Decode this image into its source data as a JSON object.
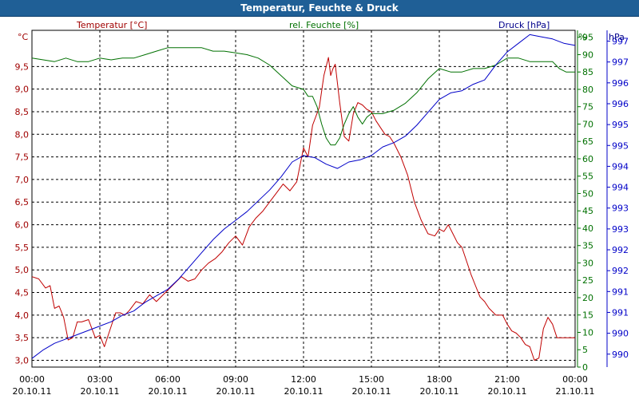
{
  "chart_data": {
    "type": "line",
    "title": "Temperatur, Feuchte & Druck",
    "series_labels": {
      "temperature": "Temperatur [°C]",
      "humidity": "rel. Feuchte [%]",
      "pressure": "Druck [hPa]"
    },
    "axis_units": {
      "left": "°C",
      "right1": "%",
      "right2": "hPa"
    },
    "y_left": {
      "range": [
        2.85,
        10.3
      ],
      "ticks": [
        "3,0",
        "3,5",
        "4,0",
        "4,5",
        "5,0",
        "5,5",
        "6,0",
        "6,5",
        "7,0",
        "7,5",
        "8,0",
        "8,5",
        "9,0",
        "9,5"
      ]
    },
    "y_right1": {
      "range": [
        0,
        97
      ],
      "ticks": [
        "0",
        "5",
        "10",
        "15",
        "20",
        "25",
        "30",
        "35",
        "40",
        "45",
        "50",
        "55",
        "60",
        "65",
        "70",
        "75",
        "80",
        "85",
        "90",
        "95"
      ]
    },
    "y_right2": {
      "range": [
        989.7,
        997.5
      ],
      "ticks": [
        "990",
        "990",
        "991",
        "991",
        "992",
        "992",
        "993",
        "993",
        "994",
        "994",
        "995",
        "995",
        "996",
        "996",
        "997",
        "997"
      ]
    },
    "x_hours_range": [
      0,
      24
    ],
    "x_ticks": [
      {
        "time": "00:00",
        "date": "20.10.11"
      },
      {
        "time": "03:00",
        "date": "20.10.11"
      },
      {
        "time": "06:00",
        "date": "20.10.11"
      },
      {
        "time": "09:00",
        "date": "20.10.11"
      },
      {
        "time": "12:00",
        "date": "20.10.11"
      },
      {
        "time": "15:00",
        "date": "20.10.11"
      },
      {
        "time": "18:00",
        "date": "20.10.11"
      },
      {
        "time": "21:00",
        "date": "20.10.11"
      },
      {
        "time": "00:00",
        "date": "21.10.11"
      }
    ],
    "series": [
      {
        "name": "Temperatur",
        "color": "#c00000",
        "axis": "left",
        "x": [
          0,
          0.3,
          0.6,
          0.8,
          1.0,
          1.2,
          1.4,
          1.6,
          1.8,
          2.0,
          2.2,
          2.5,
          2.8,
          3.0,
          3.2,
          3.4,
          3.7,
          3.9,
          4.1,
          4.3,
          4.6,
          4.9,
          5.2,
          5.5,
          5.8,
          6.1,
          6.3,
          6.6,
          6.9,
          7.2,
          7.5,
          7.8,
          8.1,
          8.4,
          8.7,
          9.0,
          9.3,
          9.6,
          9.9,
          10.2,
          10.5,
          10.8,
          11.1,
          11.4,
          11.7,
          12.0,
          12.2,
          12.4,
          12.7,
          12.9,
          13.1,
          13.2,
          13.3,
          13.4,
          13.6,
          13.8,
          14.0,
          14.2,
          14.4,
          14.6,
          14.8,
          15.0,
          15.2,
          15.4,
          15.6,
          15.8,
          16.0,
          16.3,
          16.6,
          16.9,
          17.2,
          17.5,
          17.8,
          18.0,
          18.2,
          18.4,
          18.6,
          18.8,
          19.0,
          19.2,
          19.4,
          19.6,
          19.8,
          20.0,
          20.2,
          20.5,
          20.8,
          21.0,
          21.2,
          21.4,
          21.6,
          21.8,
          22.0,
          22.2,
          22.4,
          22.6,
          22.8,
          23.0,
          23.2,
          23.4,
          23.6,
          23.8,
          24.0
        ],
        "values": [
          4.85,
          4.8,
          4.6,
          4.65,
          4.15,
          4.2,
          3.95,
          3.45,
          3.5,
          3.85,
          3.85,
          3.9,
          3.5,
          3.55,
          3.3,
          3.6,
          4.05,
          4.05,
          4.0,
          4.1,
          4.3,
          4.25,
          4.45,
          4.3,
          4.45,
          4.6,
          4.7,
          4.85,
          4.75,
          4.8,
          5.0,
          5.15,
          5.25,
          5.4,
          5.6,
          5.75,
          5.55,
          5.95,
          6.15,
          6.3,
          6.5,
          6.7,
          6.9,
          6.75,
          6.95,
          7.7,
          7.5,
          8.2,
          8.6,
          9.3,
          9.7,
          9.3,
          9.45,
          9.55,
          8.7,
          7.95,
          7.85,
          8.45,
          8.7,
          8.65,
          8.55,
          8.5,
          8.3,
          8.15,
          8.0,
          7.95,
          7.8,
          7.5,
          7.1,
          6.5,
          6.1,
          5.8,
          5.75,
          5.9,
          5.85,
          6.0,
          5.8,
          5.6,
          5.5,
          5.2,
          4.9,
          4.65,
          4.4,
          4.3,
          4.15,
          4.0,
          4.0,
          3.8,
          3.65,
          3.6,
          3.5,
          3.35,
          3.3,
          3.0,
          3.05,
          3.7,
          3.95,
          3.8,
          3.5,
          3.5,
          3.5,
          3.5,
          3.5
        ]
      },
      {
        "name": "rel. Feuchte",
        "color": "#007000",
        "axis": "right1",
        "x": [
          0,
          0.5,
          1.0,
          1.5,
          2.0,
          2.5,
          3.0,
          3.5,
          4.0,
          4.5,
          5.0,
          5.5,
          6.0,
          6.5,
          7.0,
          7.5,
          8.0,
          8.5,
          9.0,
          9.5,
          10.0,
          10.5,
          11.0,
          11.5,
          12.0,
          12.2,
          12.4,
          12.6,
          12.8,
          13.0,
          13.2,
          13.4,
          13.6,
          13.8,
          14.0,
          14.2,
          14.4,
          14.6,
          14.8,
          15.0,
          15.5,
          16.0,
          16.5,
          17.0,
          17.5,
          18.0,
          18.5,
          19.0,
          19.5,
          20.0,
          20.5,
          21.0,
          21.5,
          22.0,
          22.5,
          23.0,
          23.3,
          23.6,
          24.0
        ],
        "values": [
          89,
          88.5,
          88,
          89,
          88,
          88,
          89,
          88.5,
          89,
          89,
          90,
          91,
          92,
          92,
          92,
          92,
          91,
          91,
          90.5,
          90,
          89,
          87,
          84,
          81,
          80,
          78,
          78,
          75,
          70,
          66,
          64,
          64,
          66,
          70,
          73,
          75,
          72,
          70,
          72,
          73,
          73,
          74,
          76,
          79,
          83,
          86,
          85,
          85,
          86,
          86,
          87,
          89,
          89,
          88,
          88,
          88,
          86,
          85,
          85
        ]
      },
      {
        "name": "Druck",
        "color": "#0000c8",
        "axis": "right2",
        "x": [
          0,
          0.5,
          1.0,
          1.5,
          2.0,
          2.5,
          3.0,
          3.5,
          4.0,
          4.5,
          5.0,
          5.5,
          6.0,
          6.5,
          7.0,
          7.5,
          8.0,
          8.5,
          9.0,
          9.5,
          10.0,
          10.5,
          11.0,
          11.5,
          12.0,
          12.5,
          13.0,
          13.5,
          14.0,
          14.5,
          15.0,
          15.5,
          16.0,
          16.5,
          17.0,
          17.5,
          18.0,
          18.5,
          19.0,
          19.5,
          20.0,
          20.5,
          21.0,
          21.5,
          22.0,
          22.5,
          23.0,
          23.5,
          24.0
        ],
        "values": [
          989.9,
          990.1,
          990.25,
          990.35,
          990.45,
          990.55,
          990.65,
          990.75,
          990.9,
          991.0,
          991.2,
          991.35,
          991.5,
          991.75,
          992.05,
          992.35,
          992.65,
          992.9,
          993.1,
          993.3,
          993.55,
          993.8,
          994.1,
          994.45,
          994.6,
          994.55,
          994.4,
          994.3,
          994.45,
          994.5,
          994.6,
          994.8,
          994.9,
          995.05,
          995.3,
          995.6,
          995.9,
          996.05,
          996.1,
          996.25,
          996.35,
          996.7,
          997.0,
          997.2,
          997.4,
          997.35,
          997.3,
          997.2,
          997.15
        ]
      }
    ]
  }
}
